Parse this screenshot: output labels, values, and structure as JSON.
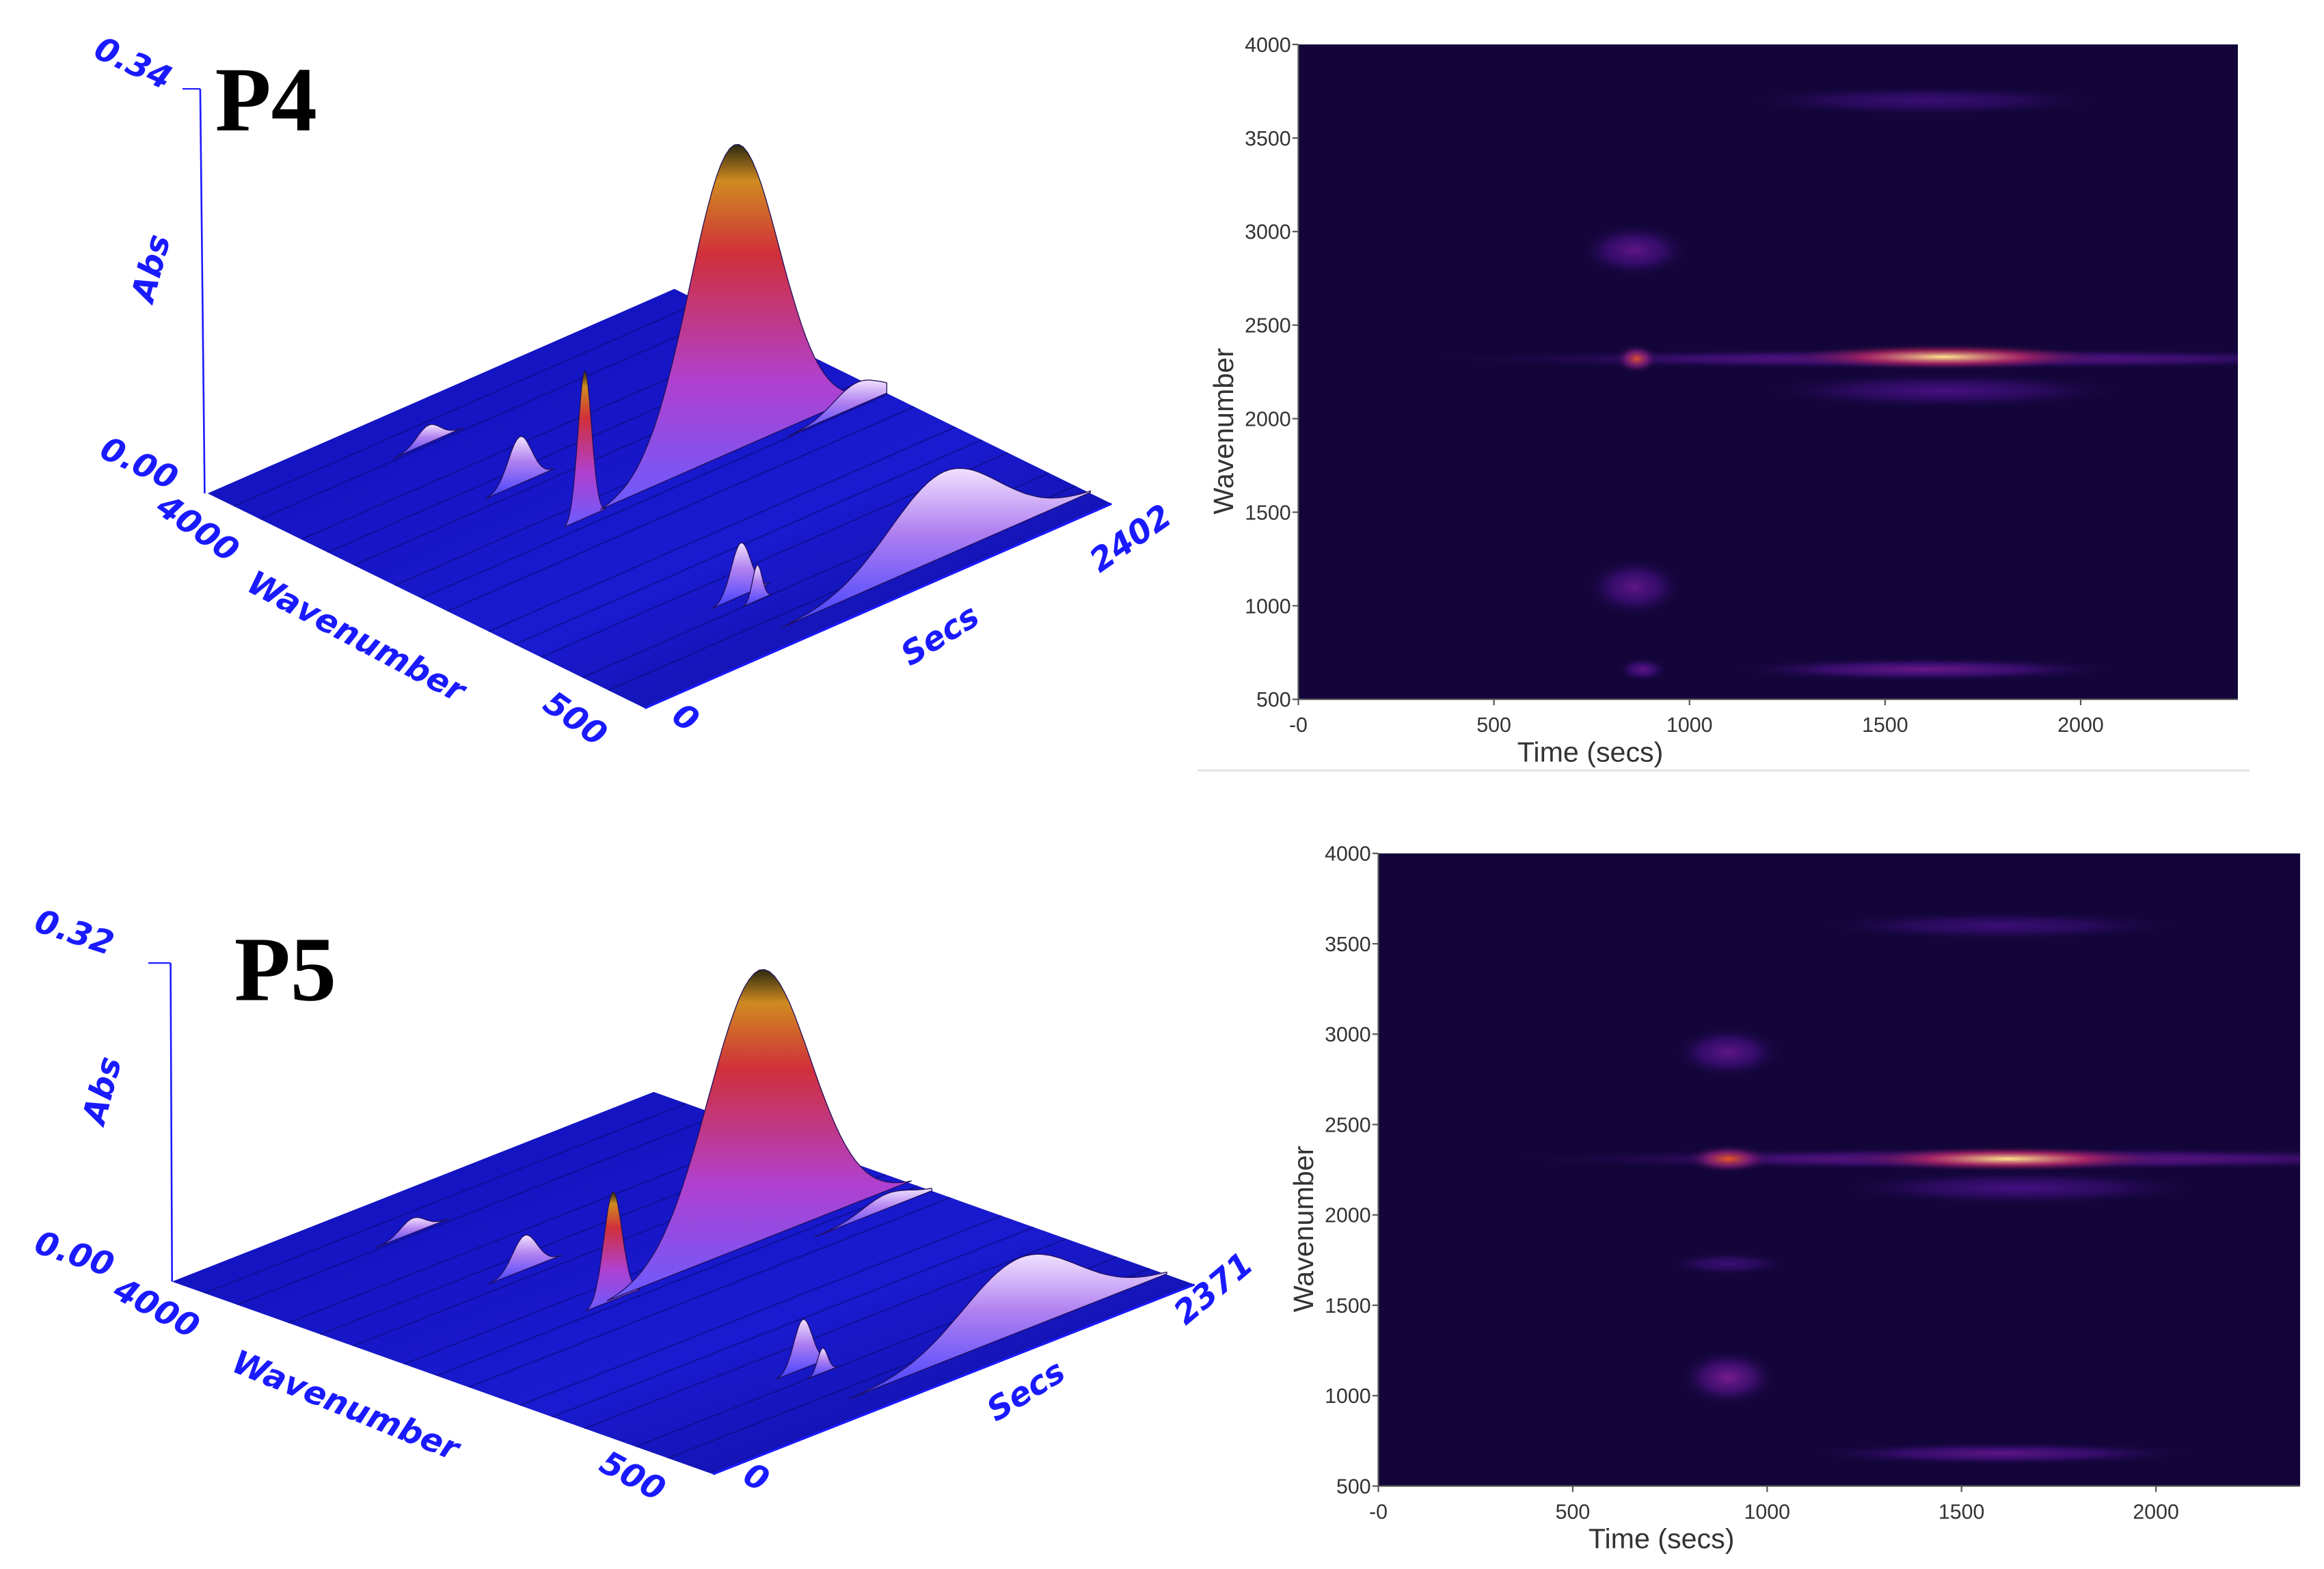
{
  "chart_data": [
    {
      "type": "surface3d",
      "panel_label": "P4",
      "zlabel": "Abs",
      "zlim": [
        0.0,
        0.34
      ],
      "zlim_labels": [
        "0.00",
        "0.34"
      ],
      "xlabel": "Wavenumber",
      "xlim": [
        4000,
        500
      ],
      "xlim_labels": [
        "4000",
        "500"
      ],
      "ylabel": "Secs",
      "ylim": [
        0,
        2402
      ],
      "ylim_labels": [
        "0",
        "2402"
      ],
      "peaks": [
        {
          "wavenumber": 3600,
          "time": 880,
          "abs": 0.015,
          "width_t": 60
        },
        {
          "wavenumber": 2900,
          "time": 900,
          "abs": 0.04,
          "width_t": 60
        },
        {
          "wavenumber": 2350,
          "time": 880,
          "abs": 0.125,
          "width_t": 35
        },
        {
          "wavenumber": 2350,
          "time": 1650,
          "abs": 0.26,
          "width_t": 230
        },
        {
          "wavenumber": 2300,
          "time": 2250,
          "abs": 0.02,
          "width_t": 120
        },
        {
          "wavenumber": 1100,
          "time": 880,
          "abs": 0.045,
          "width_t": 50
        },
        {
          "wavenumber": 1000,
          "time": 900,
          "abs": 0.03,
          "width_t": 25
        },
        {
          "wavenumber": 670,
          "time": 1650,
          "abs": 0.072,
          "width_t": 280
        }
      ]
    },
    {
      "type": "heatmap",
      "xlabel": "Time (secs)",
      "ylabel": "Wavenumber",
      "xlim": [
        0,
        2402
      ],
      "ylim": [
        500,
        4000
      ],
      "xticks": [
        "-0",
        "500",
        "1000",
        "1500",
        "2000"
      ],
      "xtick_values": [
        0,
        500,
        1000,
        1500,
        2000
      ],
      "yticks": [
        "500",
        "1000",
        "1500",
        "2000",
        "2500",
        "3000",
        "3500",
        "4000"
      ],
      "ytick_values": [
        500,
        1000,
        1500,
        2000,
        2500,
        3000,
        3500,
        4000
      ],
      "background": "#13053a",
      "features": [
        {
          "time": 1650,
          "wavenumber": 2320,
          "dt": 850,
          "dwn": 35,
          "intensity": 0.35
        },
        {
          "time": 1650,
          "wavenumber": 2330,
          "dt": 260,
          "dwn": 45,
          "intensity": 1.0
        },
        {
          "time": 865,
          "wavenumber": 2320,
          "dt": 35,
          "dwn": 50,
          "intensity": 0.75
        },
        {
          "time": 1650,
          "wavenumber": 2150,
          "dt": 300,
          "dwn": 60,
          "intensity": 0.2
        },
        {
          "time": 860,
          "wavenumber": 2900,
          "dt": 90,
          "dwn": 90,
          "intensity": 0.3
        },
        {
          "time": 860,
          "wavenumber": 1100,
          "dt": 80,
          "dwn": 100,
          "intensity": 0.3
        },
        {
          "time": 1600,
          "wavenumber": 660,
          "dt": 320,
          "dwn": 40,
          "intensity": 0.35
        },
        {
          "time": 880,
          "wavenumber": 660,
          "dt": 40,
          "dwn": 40,
          "intensity": 0.3
        },
        {
          "time": 1600,
          "wavenumber": 3700,
          "dt": 300,
          "dwn": 50,
          "intensity": 0.15
        }
      ]
    },
    {
      "type": "surface3d",
      "panel_label": "P5",
      "zlabel": "Abs",
      "zlim": [
        0.0,
        0.32
      ],
      "zlim_labels": [
        "0.00",
        "0.32"
      ],
      "xlabel": "Wavenumber",
      "xlim": [
        4000,
        500
      ],
      "xlim_labels": [
        "4000",
        "500"
      ],
      "ylabel": "Secs",
      "ylim": [
        0,
        2371
      ],
      "ylim_labels": [
        "0",
        "2371"
      ],
      "peaks": [
        {
          "wavenumber": 3600,
          "time": 880,
          "abs": 0.015,
          "width_t": 60
        },
        {
          "wavenumber": 2900,
          "time": 900,
          "abs": 0.035,
          "width_t": 60
        },
        {
          "wavenumber": 2330,
          "time": 900,
          "abs": 0.11,
          "width_t": 45
        },
        {
          "wavenumber": 2330,
          "time": 1620,
          "abs": 0.275,
          "width_t": 250
        },
        {
          "wavenumber": 2200,
          "time": 2150,
          "abs": 0.015,
          "width_t": 120
        },
        {
          "wavenumber": 1100,
          "time": 900,
          "abs": 0.05,
          "width_t": 45
        },
        {
          "wavenumber": 1000,
          "time": 920,
          "abs": 0.025,
          "width_t": 25
        },
        {
          "wavenumber": 680,
          "time": 1650,
          "abs": 0.075,
          "width_t": 280
        }
      ]
    },
    {
      "type": "heatmap",
      "xlabel": "Time (secs)",
      "ylabel": "Wavenumber",
      "xlim": [
        0,
        2371
      ],
      "ylim": [
        500,
        4000
      ],
      "xticks": [
        "-0",
        "500",
        "1000",
        "1500",
        "2000"
      ],
      "xtick_values": [
        0,
        500,
        1000,
        1500,
        2000
      ],
      "yticks": [
        "500",
        "1000",
        "1500",
        "2000",
        "2500",
        "3000",
        "3500",
        "4000"
      ],
      "ytick_values": [
        500,
        1000,
        1500,
        2000,
        2500,
        3000,
        3500,
        4000
      ],
      "background": "#13053a",
      "features": [
        {
          "time": 1650,
          "wavenumber": 2310,
          "dt": 850,
          "dwn": 40,
          "intensity": 0.4
        },
        {
          "time": 1620,
          "wavenumber": 2310,
          "dt": 260,
          "dwn": 45,
          "intensity": 1.0
        },
        {
          "time": 900,
          "wavenumber": 2310,
          "dt": 70,
          "dwn": 50,
          "intensity": 0.8
        },
        {
          "time": 1650,
          "wavenumber": 2150,
          "dt": 300,
          "dwn": 60,
          "intensity": 0.2
        },
        {
          "time": 900,
          "wavenumber": 2900,
          "dt": 90,
          "dwn": 90,
          "intensity": 0.3
        },
        {
          "time": 900,
          "wavenumber": 1100,
          "dt": 80,
          "dwn": 100,
          "intensity": 0.4
        },
        {
          "time": 900,
          "wavenumber": 1730,
          "dt": 100,
          "dwn": 40,
          "intensity": 0.15
        },
        {
          "time": 1600,
          "wavenumber": 680,
          "dt": 320,
          "dwn": 40,
          "intensity": 0.3
        },
        {
          "time": 1600,
          "wavenumber": 3600,
          "dt": 300,
          "dwn": 50,
          "intensity": 0.15
        }
      ]
    }
  ]
}
